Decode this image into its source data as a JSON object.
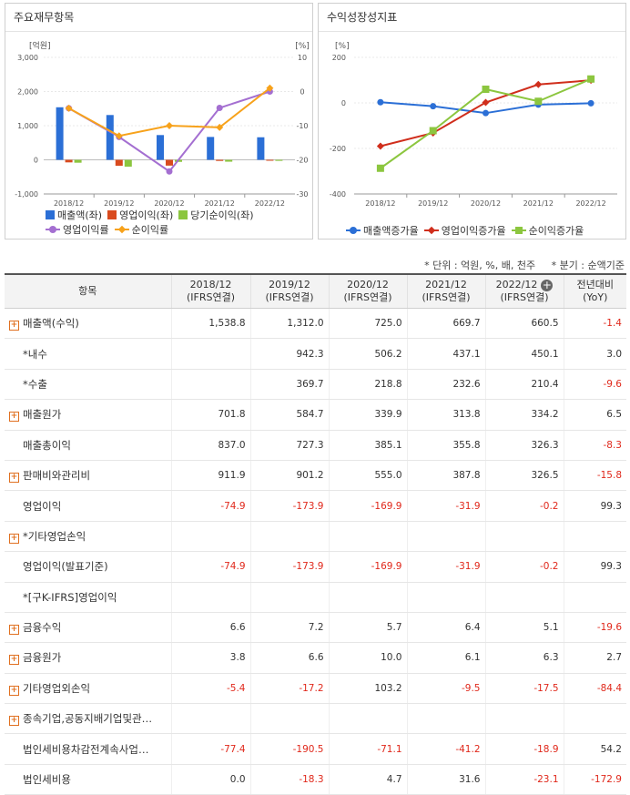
{
  "charts": {
    "left_title": "주요재무항목",
    "right_title": "수익성장성지표"
  },
  "chart_data": [
    {
      "type": "bar",
      "title": "주요재무항목",
      "categories": [
        "2018/12",
        "2019/12",
        "2020/12",
        "2021/12",
        "2022/12"
      ],
      "y_left_unit": "[억원]",
      "y_right_unit": "[%]",
      "y_left_ticks": [
        "3,000",
        "2,000",
        "1,000",
        "0",
        "-1,000"
      ],
      "y_right_ticks": [
        "10",
        "0",
        "-10",
        "-20",
        "-30"
      ],
      "ylim_left": [
        -1000,
        3000
      ],
      "ylim_right": [
        -30,
        10
      ],
      "series": [
        {
          "name": "매출액(좌)",
          "kind": "bar",
          "axis": "left",
          "color": "#2b6fd6",
          "values": [
            1538.8,
            1312.0,
            725.0,
            669.7,
            660.5
          ]
        },
        {
          "name": "영업이익(좌)",
          "kind": "bar",
          "axis": "left",
          "color": "#d94a1e",
          "values": [
            -74.9,
            -173.9,
            -169.9,
            -31.9,
            -0.2
          ]
        },
        {
          "name": "당기순이익(좌)",
          "kind": "bar",
          "axis": "left",
          "color": "#8cc63f",
          "values": [
            -85,
            -200,
            -60,
            -55,
            -30
          ]
        },
        {
          "name": "영업이익률",
          "kind": "line",
          "axis": "right",
          "color": "#a46fd1",
          "values": [
            -4.9,
            -13.3,
            -23.4,
            -4.8,
            0.0
          ]
        },
        {
          "name": "순이익률",
          "kind": "line",
          "axis": "right",
          "color": "#f7a21b",
          "values": [
            -4.9,
            -13.0,
            -10.0,
            -10.5,
            1.0
          ]
        }
      ],
      "legend": "bottom"
    },
    {
      "type": "line",
      "title": "수익성장성지표",
      "categories": [
        "2018/12",
        "2019/12",
        "2020/12",
        "2021/12",
        "2022/12"
      ],
      "y_unit": "[%]",
      "y_ticks": [
        "200",
        "0",
        "-200",
        "-400"
      ],
      "ylim": [
        -400,
        200
      ],
      "series": [
        {
          "name": "매출액증가율",
          "color": "#2b6fd6",
          "marker": "circle",
          "values": [
            3,
            -14.7,
            -44.7,
            -7.6,
            -1.4
          ]
        },
        {
          "name": "영업이익증가율",
          "color": "#d02e1c",
          "marker": "diamond",
          "values": [
            -190,
            -132,
            2,
            81,
            99.3
          ]
        },
        {
          "name": "순이익증가율",
          "color": "#8cc63f",
          "marker": "square",
          "values": [
            -287,
            -122,
            60,
            7,
            105
          ]
        }
      ],
      "legend": "bottom"
    }
  ],
  "meta": {
    "unit": "* 단위 : 억원, %, 배, 천주",
    "period": "* 분기 : 순액기준"
  },
  "table": {
    "item_header": "항목",
    "columns": [
      {
        "l1": "2018/12",
        "l2": "(IFRS연결)"
      },
      {
        "l1": "2019/12",
        "l2": "(IFRS연결)"
      },
      {
        "l1": "2020/12",
        "l2": "(IFRS연결)"
      },
      {
        "l1": "2021/12",
        "l2": "(IFRS연결)"
      },
      {
        "l1": "2022/12",
        "l2": "(IFRS연결)"
      }
    ],
    "yoy_l1": "전년대비",
    "yoy_l2": "(YoY)",
    "rows": [
      {
        "label": "매출액(수익)",
        "expand": true,
        "values": [
          "1,538.8",
          "1,312.0",
          "725.0",
          "669.7",
          "660.5",
          "-1.4"
        ]
      },
      {
        "label": "*내수",
        "expand": false,
        "values": [
          "",
          "942.3",
          "506.2",
          "437.1",
          "450.1",
          "3.0"
        ]
      },
      {
        "label": "*수출",
        "expand": false,
        "values": [
          "",
          "369.7",
          "218.8",
          "232.6",
          "210.4",
          "-9.6"
        ]
      },
      {
        "label": "매출원가",
        "expand": true,
        "values": [
          "701.8",
          "584.7",
          "339.9",
          "313.8",
          "334.2",
          "6.5"
        ]
      },
      {
        "label": "매출총이익",
        "expand": false,
        "values": [
          "837.0",
          "727.3",
          "385.1",
          "355.8",
          "326.3",
          "-8.3"
        ]
      },
      {
        "label": "판매비와관리비",
        "expand": true,
        "values": [
          "911.9",
          "901.2",
          "555.0",
          "387.8",
          "326.5",
          "-15.8"
        ]
      },
      {
        "label": "영업이익",
        "expand": false,
        "values": [
          "-74.9",
          "-173.9",
          "-169.9",
          "-31.9",
          "-0.2",
          "99.3"
        ]
      },
      {
        "label": "*기타영업손익",
        "expand": true,
        "values": [
          "",
          "",
          "",
          "",
          "",
          ""
        ]
      },
      {
        "label": "영업이익(발표기준)",
        "expand": false,
        "values": [
          "-74.9",
          "-173.9",
          "-169.9",
          "-31.9",
          "-0.2",
          "99.3"
        ]
      },
      {
        "label": "*[구K-IFRS]영업이익",
        "expand": false,
        "values": [
          "",
          "",
          "",
          "",
          "",
          ""
        ]
      },
      {
        "label": "금융수익",
        "expand": true,
        "values": [
          "6.6",
          "7.2",
          "5.7",
          "6.4",
          "5.1",
          "-19.6"
        ]
      },
      {
        "label": "금융원가",
        "expand": true,
        "values": [
          "3.8",
          "6.6",
          "10.0",
          "6.1",
          "6.3",
          "2.7"
        ]
      },
      {
        "label": "기타영업외손익",
        "expand": true,
        "values": [
          "-5.4",
          "-17.2",
          "103.2",
          "-9.5",
          "-17.5",
          "-84.4"
        ]
      },
      {
        "label": "종속기업,공동지배기업및관…",
        "expand": true,
        "values": [
          "",
          "",
          "",
          "",
          "",
          ""
        ]
      },
      {
        "label": "법인세비용차감전계속사업…",
        "expand": false,
        "values": [
          "-77.4",
          "-190.5",
          "-71.1",
          "-41.2",
          "-18.9",
          "54.2"
        ]
      },
      {
        "label": "법인세비용",
        "expand": false,
        "values": [
          "0.0",
          "-18.3",
          "4.7",
          "31.6",
          "-23.1",
          "-172.9"
        ]
      }
    ]
  }
}
